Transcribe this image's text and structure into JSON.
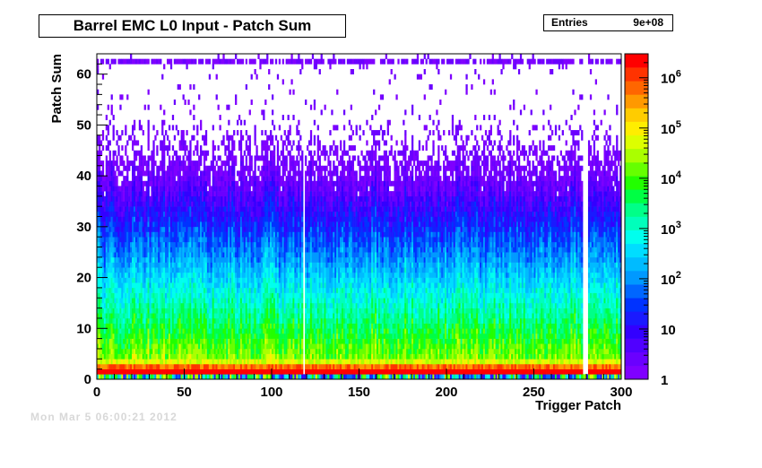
{
  "title": "Barrel EMC L0 Input - Patch Sum",
  "stats": {
    "label": "Entries",
    "value": "9e+08"
  },
  "footer_note": "Mon Mar 5 06:00:21 2012",
  "chart_data": {
    "type": "heatmap",
    "title": "Barrel EMC L0 Input - Patch Sum",
    "xlabel": "Trigger Patch",
    "ylabel": "Patch Sum",
    "xlim": [
      0,
      300
    ],
    "ylim": [
      0,
      64
    ],
    "x_ticks": [
      0,
      50,
      100,
      150,
      200,
      250,
      300
    ],
    "y_ticks": [
      0,
      10,
      20,
      30,
      40,
      50,
      60
    ],
    "z_scale": "log",
    "zlim": [
      1,
      3000000
    ],
    "z_ticks": [
      {
        "value": 1,
        "label": "1"
      },
      {
        "value": 10,
        "label": "10"
      },
      {
        "value": 100,
        "label": "10^2"
      },
      {
        "value": 1000,
        "label": "10^3"
      },
      {
        "value": 10000,
        "label": "10^4"
      },
      {
        "value": 100000,
        "label": "10^5"
      },
      {
        "value": 1000000,
        "label": "10^6"
      }
    ],
    "palette": [
      "#7f00ff",
      "#6a00ff",
      "#5000ff",
      "#3300ff",
      "#1a1aff",
      "#0033ff",
      "#0066ff",
      "#0099ff",
      "#00bbff",
      "#00ddff",
      "#00ffee",
      "#00ffbb",
      "#00ff88",
      "#00ff44",
      "#22ff00",
      "#66ff00",
      "#aaff00",
      "#ddff00",
      "#ffee00",
      "#ffcc00",
      "#ff9900",
      "#ff6600",
      "#ff3300",
      "#ff0000"
    ],
    "dead_patches": [
      118,
      278,
      279,
      280
    ]
  }
}
